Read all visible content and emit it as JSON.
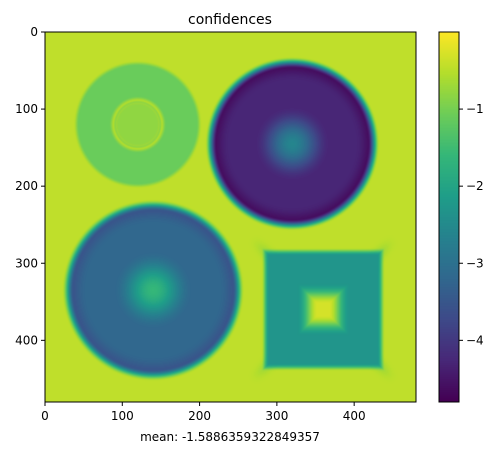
{
  "chart_data": {
    "type": "heatmap",
    "title": "confidences",
    "xlabel": "mean: -1.5886359322849357",
    "ylabel": "",
    "image_size": [
      480,
      480
    ],
    "xlim": [
      0,
      480
    ],
    "ylim": [
      480,
      0
    ],
    "xticks": [
      0,
      100,
      200,
      300,
      400
    ],
    "yticks": [
      0,
      100,
      200,
      300,
      400
    ],
    "colormap": "viridis",
    "color_range": [
      -4.8,
      0
    ],
    "colorbar_ticks": [
      -1,
      -2,
      -3,
      -4
    ],
    "colorbar_tick_labels": [
      "−1",
      "−2",
      "−3",
      "−4"
    ],
    "mean": -1.5886359322849357,
    "regions": [
      {
        "kind": "ring",
        "center": [
          120,
          120
        ],
        "outer_radius": 80,
        "inner_radius": 33,
        "value": -1.1
      },
      {
        "kind": "disk",
        "center": [
          320,
          145
        ],
        "radius": 110,
        "value": -4.3,
        "center_value": -2.6
      },
      {
        "kind": "disk",
        "center": [
          140,
          335
        ],
        "radius": 115,
        "value": -3.2,
        "center_value": -1.6
      },
      {
        "kind": "square",
        "center": [
          360,
          360
        ],
        "half_size": 75,
        "value": -2.3,
        "center_value": -0.3
      }
    ],
    "background_value": -0.45
  }
}
